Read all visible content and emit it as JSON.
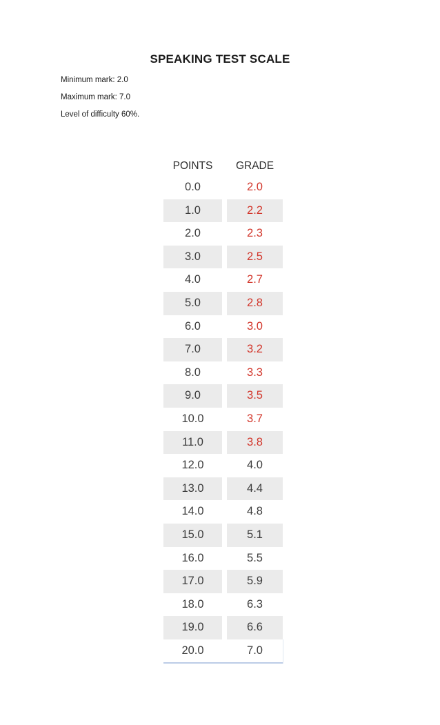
{
  "page": {
    "title": "SPEAKING TEST SCALE",
    "meta": [
      "Minimum mark: 2.0",
      "Maximum mark: 7.0",
      "Level of difficulty  60%."
    ]
  },
  "table": {
    "headers": [
      "POINTS",
      "GRADE"
    ],
    "rows": [
      {
        "points": "0.0",
        "grade": "2.0",
        "red": true
      },
      {
        "points": "1.0",
        "grade": "2.2",
        "red": true
      },
      {
        "points": "2.0",
        "grade": "2.3",
        "red": true
      },
      {
        "points": "3.0",
        "grade": "2.5",
        "red": true
      },
      {
        "points": "4.0",
        "grade": "2.7",
        "red": true
      },
      {
        "points": "5.0",
        "grade": "2.8",
        "red": true
      },
      {
        "points": "6.0",
        "grade": "3.0",
        "red": true
      },
      {
        "points": "7.0",
        "grade": "3.2",
        "red": true
      },
      {
        "points": "8.0",
        "grade": "3.3",
        "red": true
      },
      {
        "points": "9.0",
        "grade": "3.5",
        "red": true
      },
      {
        "points": "10.0",
        "grade": "3.7",
        "red": true
      },
      {
        "points": "11.0",
        "grade": "3.8",
        "red": true
      },
      {
        "points": "12.0",
        "grade": "4.0",
        "red": false
      },
      {
        "points": "13.0",
        "grade": "4.4",
        "red": false
      },
      {
        "points": "14.0",
        "grade": "4.8",
        "red": false
      },
      {
        "points": "15.0",
        "grade": "5.1",
        "red": false
      },
      {
        "points": "16.0",
        "grade": "5.5",
        "red": false
      },
      {
        "points": "17.0",
        "grade": "5.9",
        "red": false
      },
      {
        "points": "18.0",
        "grade": "6.3",
        "red": false
      },
      {
        "points": "19.0",
        "grade": "6.6",
        "red": false
      },
      {
        "points": "20.0",
        "grade": "7.0",
        "red": false
      }
    ]
  },
  "chart_data": {
    "type": "table",
    "title": "SPEAKING TEST SCALE",
    "columns": [
      "POINTS",
      "GRADE"
    ],
    "points": [
      0.0,
      1.0,
      2.0,
      3.0,
      4.0,
      5.0,
      6.0,
      7.0,
      8.0,
      9.0,
      10.0,
      11.0,
      12.0,
      13.0,
      14.0,
      15.0,
      16.0,
      17.0,
      18.0,
      19.0,
      20.0
    ],
    "grades": [
      2.0,
      2.2,
      2.3,
      2.5,
      2.7,
      2.8,
      3.0,
      3.2,
      3.3,
      3.5,
      3.7,
      3.8,
      4.0,
      4.4,
      4.8,
      5.1,
      5.5,
      5.9,
      6.3,
      6.6,
      7.0
    ],
    "minimum_mark": 2.0,
    "maximum_mark": 7.0,
    "level_of_difficulty_percent": 60
  },
  "colors": {
    "grade_fail_red": "#d2362b",
    "text_dark": "#3d3d3d",
    "stripe_gray": "#ebebeb",
    "last_row_border": "#bccce7"
  }
}
